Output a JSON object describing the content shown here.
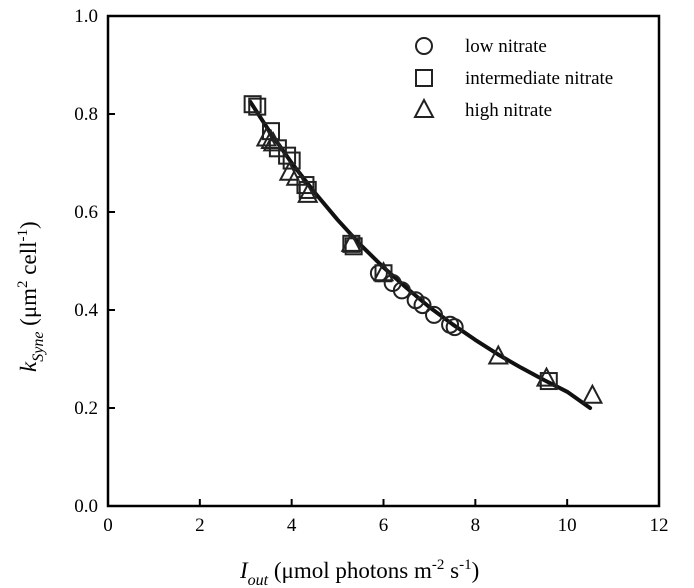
{
  "chart_data": {
    "type": "scatter",
    "title": "",
    "xlabel": {
      "main": "I",
      "sub": "out",
      "rest1": " (μmol photons m",
      "sup1": "-2",
      "rest2": " s",
      "sup2": "-1",
      "rest3": ")"
    },
    "ylabel": {
      "main": "k",
      "sub": "Syne",
      "rest1": " (μm",
      "sup1": "2",
      "rest2": " cell",
      "sup2": "-1",
      "rest3": ")"
    },
    "xlim": [
      0,
      12
    ],
    "ylim": [
      0.0,
      1.0
    ],
    "xticks": [
      "0",
      "2",
      "4",
      "6",
      "8",
      "10",
      "12"
    ],
    "yticks": [
      "0.0",
      "0.2",
      "0.4",
      "0.6",
      "0.8",
      "1.0"
    ],
    "xtick_values": [
      0,
      2,
      4,
      6,
      8,
      10,
      12
    ],
    "ytick_values": [
      0.0,
      0.2,
      0.4,
      0.6,
      0.8,
      1.0
    ],
    "legend_position": "top-right",
    "series": [
      {
        "name": "low nitrate",
        "marker": "circle",
        "x": [
          5.9,
          6.2,
          6.4,
          6.7,
          6.85,
          7.1,
          7.45,
          7.55
        ],
        "y": [
          0.475,
          0.455,
          0.44,
          0.42,
          0.41,
          0.39,
          0.37,
          0.365
        ]
      },
      {
        "name": "intermediate nitrate",
        "marker": "square",
        "x": [
          3.15,
          3.25,
          3.55,
          3.7,
          3.9,
          4.0,
          4.3,
          4.35,
          5.3,
          5.35,
          6.0,
          9.6
        ],
        "y": [
          0.82,
          0.815,
          0.765,
          0.73,
          0.715,
          0.705,
          0.655,
          0.645,
          0.535,
          0.53,
          0.475,
          0.255
        ]
      },
      {
        "name": "high nitrate",
        "marker": "triangle",
        "x": [
          3.45,
          3.55,
          3.6,
          3.95,
          4.1,
          4.35,
          5.3,
          6.0,
          8.5,
          9.55,
          10.55
        ],
        "y": [
          0.75,
          0.745,
          0.74,
          0.68,
          0.67,
          0.635,
          0.535,
          0.475,
          0.305,
          0.26,
          0.225
        ]
      }
    ],
    "fit_curve": {
      "type": "line",
      "x": [
        3.1,
        3.5,
        4.0,
        4.5,
        5.0,
        5.5,
        6.0,
        6.5,
        7.0,
        7.5,
        8.0,
        8.5,
        9.0,
        9.5,
        10.0,
        10.5
      ],
      "y": [
        0.825,
        0.767,
        0.7,
        0.64,
        0.584,
        0.533,
        0.487,
        0.445,
        0.406,
        0.371,
        0.339,
        0.309,
        0.282,
        0.257,
        0.233,
        0.2
      ]
    }
  }
}
